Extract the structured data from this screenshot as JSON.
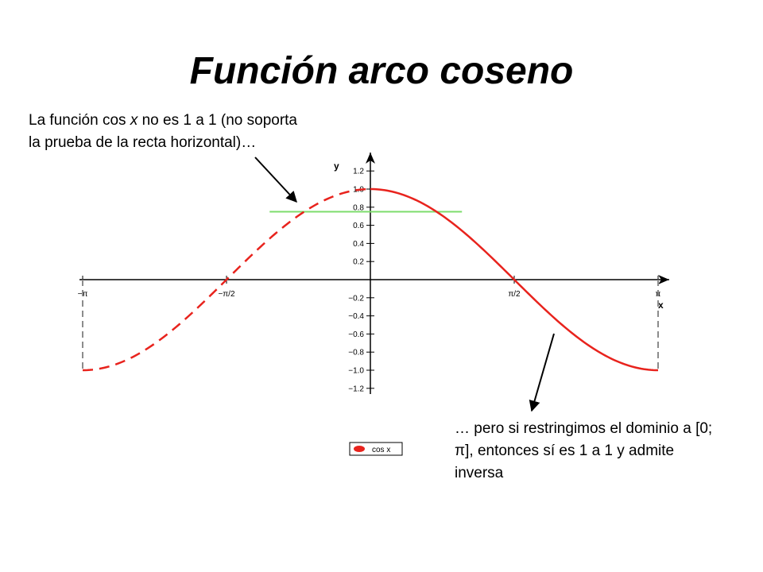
{
  "slide": {
    "title": "Función arco coseno",
    "note_left": {
      "prefix": "La función cos ",
      "var": "x",
      "suffix": " no es 1 a 1 (no soporta la prueba de la recta horizontal)…"
    },
    "note_right": "… pero si restringimos el dominio a [0; π], entonces sí es 1 a 1 y admite inversa"
  },
  "chart_data": {
    "type": "line",
    "function": "cos x",
    "xlabel": "x",
    "ylabel": "y",
    "xlim": [
      -3.1416,
      3.1416
    ],
    "ylim": [
      -1.2,
      1.2
    ],
    "x_ticks": [
      {
        "value": -3.1416,
        "label": "−π"
      },
      {
        "value": -1.5708,
        "label": "−π/2"
      },
      {
        "value": 1.5708,
        "label": "π/2"
      },
      {
        "value": 3.1416,
        "label": "π"
      }
    ],
    "y_ticks": [
      {
        "value": 1.2,
        "label": "1.2"
      },
      {
        "value": 1.0,
        "label": "1.0"
      },
      {
        "value": 0.8,
        "label": "0.8"
      },
      {
        "value": 0.6,
        "label": "0.6"
      },
      {
        "value": 0.4,
        "label": "0.4"
      },
      {
        "value": 0.2,
        "label": "0.2"
      },
      {
        "value": -0.2,
        "label": "−0.2"
      },
      {
        "value": -0.4,
        "label": "−0.4"
      },
      {
        "value": -0.6,
        "label": "−0.6"
      },
      {
        "value": -0.8,
        "label": "−0.8"
      },
      {
        "value": -1.0,
        "label": "−1.0"
      },
      {
        "value": -1.2,
        "label": "−1.2"
      }
    ],
    "series": [
      {
        "name": "cos x",
        "color": "#e8231d",
        "domain_dashed": [
          -3.1416,
          0
        ],
        "domain_solid": [
          0,
          3.1416
        ]
      }
    ],
    "horizontal_test_line": {
      "y": 0.75,
      "x_range": [
        -1.1,
        1.0
      ],
      "color": "#7ddc6c"
    },
    "boundary_lines": {
      "x": [
        -3.1416,
        3.1416
      ],
      "y_range": [
        -1,
        0
      ],
      "style": "dashed",
      "color": "#8c8c8c"
    },
    "legend": {
      "entries": [
        "cos x"
      ],
      "placement": "bottom"
    },
    "annotation_arrows": 2,
    "grid": false
  }
}
